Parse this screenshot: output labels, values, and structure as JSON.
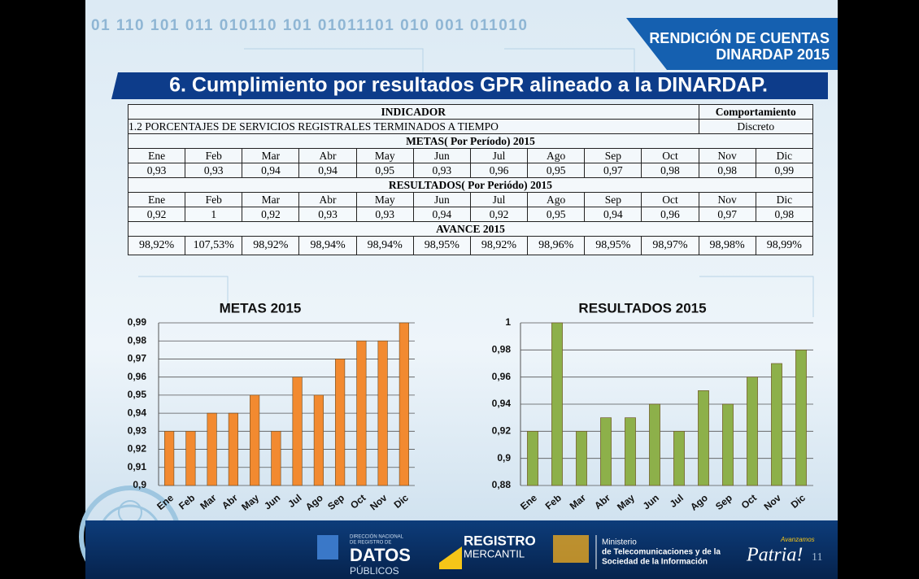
{
  "header": {
    "binary": "01 110 101 011 010110 101 01011101 010 001 011010",
    "badge_line1": "RENDICIÓN DE CUENTAS",
    "badge_line2": "DINARDAP 2015",
    "title": "6. Cumplimiento por resultados GPR alineado a la DINARDAP."
  },
  "table": {
    "indicator_heading": "INDICADOR",
    "behavior_heading": "Comportamiento",
    "indicator": "1.2 PORCENTAJES DE SERVICIOS REGISTRALES TERMINADOS A TIEMPO",
    "behavior": "Discreto",
    "metas": {
      "title": "METAS( Por Período) 2015",
      "months": [
        "Ene",
        "Feb",
        "Mar",
        "Abr",
        "May",
        "Jun",
        "Jul",
        "Ago",
        "Sep",
        "Oct",
        "Nov",
        "Dic"
      ],
      "values": [
        "0,93",
        "0,93",
        "0,94",
        "0,94",
        "0,95",
        "0,93",
        "0,96",
        "0,95",
        "0,97",
        "0,98",
        "0,98",
        "0,99"
      ]
    },
    "resultados": {
      "title": "RESULTADOS( Por Periódo) 2015",
      "months": [
        "Ene",
        "Feb",
        "Mar",
        "Abr",
        "May",
        "Jun",
        "Jul",
        "Ago",
        "Sep",
        "Oct",
        "Nov",
        "Dic"
      ],
      "values": [
        "0,92",
        "1",
        "0,92",
        "0,93",
        "0,93",
        "0,94",
        "0,92",
        "0,95",
        "0,94",
        "0,96",
        "0,97",
        "0,98"
      ]
    },
    "avance": {
      "title": "AVANCE 2015",
      "values": [
        "98,92%",
        "107,53%",
        "98,92%",
        "98,94%",
        "98,94%",
        "98,95%",
        "98,92%",
        "98,96%",
        "98,95%",
        "98,97%",
        "98,98%",
        "98,99%"
      ]
    }
  },
  "chart_data": [
    {
      "type": "bar",
      "title": "METAS 2015",
      "categories": [
        "Ene",
        "Feb",
        "Mar",
        "Abr",
        "May",
        "Jun",
        "Jul",
        "Ago",
        "Sep",
        "Oct",
        "Nov",
        "Dic"
      ],
      "values": [
        0.93,
        0.93,
        0.94,
        0.94,
        0.95,
        0.93,
        0.96,
        0.95,
        0.97,
        0.98,
        0.98,
        0.99
      ],
      "color": "#f28a30",
      "ylim": [
        0.9,
        0.99
      ],
      "yticks": [
        {
          "value": 0.9,
          "label": "0,9"
        },
        {
          "value": 0.91,
          "label": "0,91"
        },
        {
          "value": 0.92,
          "label": "0,92"
        },
        {
          "value": 0.93,
          "label": "0,93"
        },
        {
          "value": 0.94,
          "label": "0,94"
        },
        {
          "value": 0.95,
          "label": "0,95"
        },
        {
          "value": 0.96,
          "label": "0,96"
        },
        {
          "value": 0.97,
          "label": "0,97"
        },
        {
          "value": 0.98,
          "label": "0,98"
        },
        {
          "value": 0.99,
          "label": "0,99"
        }
      ],
      "grid": true
    },
    {
      "type": "bar",
      "title": "RESULTADOS 2015",
      "categories": [
        "Ene",
        "Feb",
        "Mar",
        "Abr",
        "May",
        "Jun",
        "Jul",
        "Ago",
        "Sep",
        "Oct",
        "Nov",
        "Dic"
      ],
      "values": [
        0.92,
        1,
        0.92,
        0.93,
        0.93,
        0.94,
        0.92,
        0.95,
        0.94,
        0.96,
        0.97,
        0.98
      ],
      "color": "#8db04a",
      "ylim": [
        0.88,
        1
      ],
      "yticks": [
        {
          "value": 0.88,
          "label": "0,88"
        },
        {
          "value": 0.9,
          "label": "0,9"
        },
        {
          "value": 0.92,
          "label": "0,92"
        },
        {
          "value": 0.94,
          "label": "0,94"
        },
        {
          "value": 0.96,
          "label": "0,96"
        },
        {
          "value": 0.98,
          "label": "0,98"
        },
        1
      ],
      "grid": true
    }
  ],
  "footer": {
    "dinardap_small_1": "DIRECCIÓN NACIONAL",
    "dinardap_small_2": "DE REGISTRO DE",
    "dinardap_big": "DATOS",
    "dinardap_sub": "PÚBLICOS",
    "registro": "REGISTRO",
    "mercantil": "MERCANTIL",
    "ministerio_1": "Ministerio",
    "ministerio_2": "de Telecomunicaciones y de la",
    "ministerio_3": "Sociedad de la Información",
    "patria_small": "Avanzamos",
    "patria": "Patria!",
    "page": "11"
  }
}
